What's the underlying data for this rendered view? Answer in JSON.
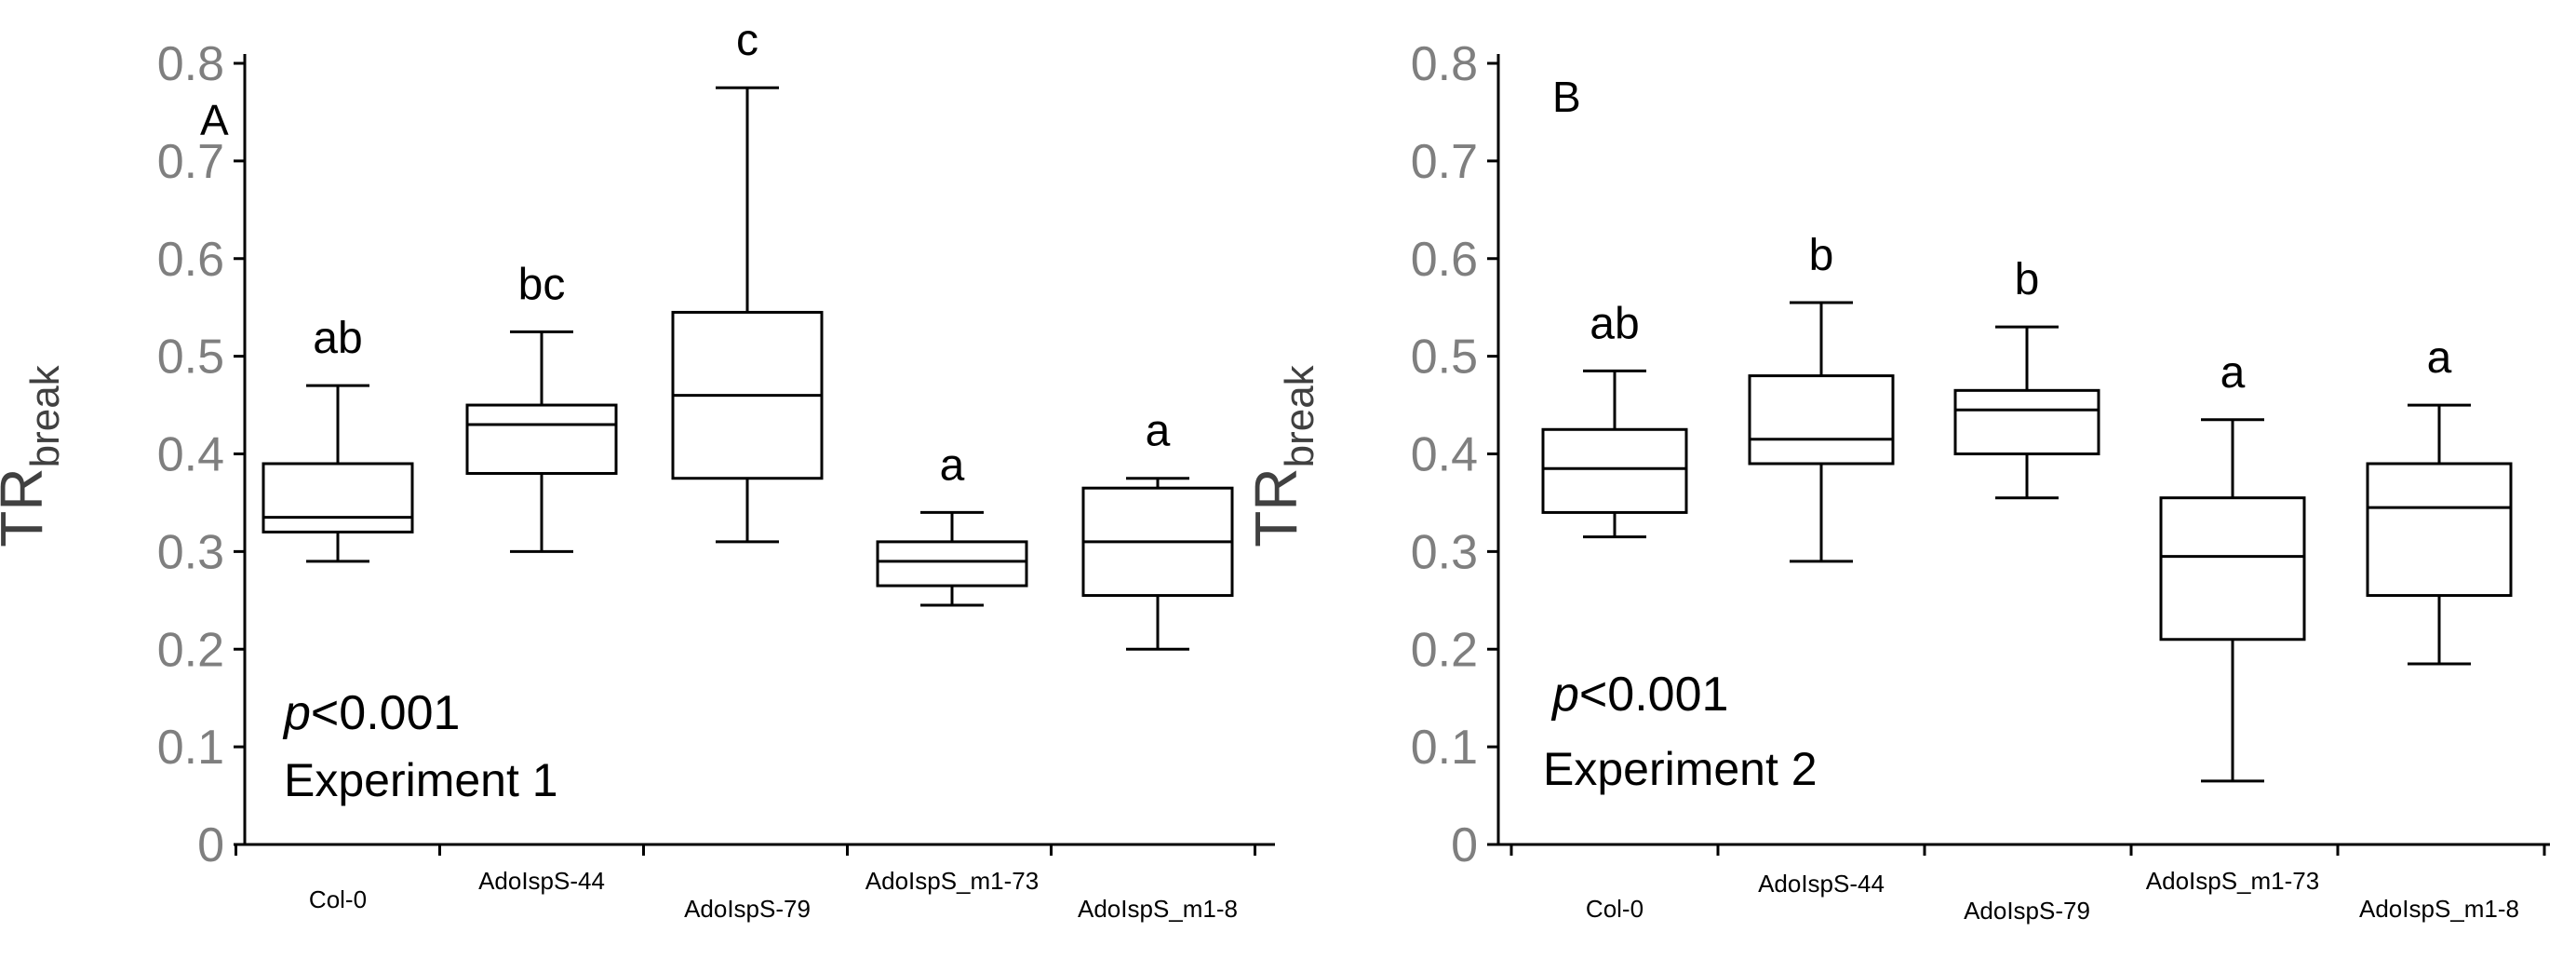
{
  "chart_data": [
    {
      "type": "box",
      "panel_label": "A",
      "ylabel": "TR",
      "ylabel_subscript": "break",
      "ylim": [
        0,
        0.8
      ],
      "yticks": [
        "0",
        "0.1",
        "0.2",
        "0.3",
        "0.4",
        "0.5",
        "0.6",
        "0.7",
        "0.8"
      ],
      "annotation_p_prefix": "p",
      "annotation_p_value": "<0.001",
      "annotation_experiment": "Experiment 1",
      "categories": [
        "Col-0",
        "AdoIspS-44",
        "AdoIspS-79",
        "AdoIspS_m1-73",
        "AdoIspS_m1-8"
      ],
      "boxes": [
        {
          "min": 0.29,
          "q1": 0.32,
          "median": 0.335,
          "q3": 0.39,
          "max": 0.47,
          "letter": "ab"
        },
        {
          "min": 0.3,
          "q1": 0.38,
          "median": 0.43,
          "q3": 0.45,
          "max": 0.525,
          "letter": "bc"
        },
        {
          "min": 0.31,
          "q1": 0.375,
          "median": 0.46,
          "q3": 0.545,
          "max": 0.775,
          "letter": "c"
        },
        {
          "min": 0.245,
          "q1": 0.265,
          "median": 0.29,
          "q3": 0.31,
          "max": 0.34,
          "letter": "a"
        },
        {
          "min": 0.2,
          "q1": 0.255,
          "median": 0.31,
          "q3": 0.365,
          "max": 0.375,
          "letter": "a"
        }
      ]
    },
    {
      "type": "box",
      "panel_label": "B",
      "ylabel": "TR",
      "ylabel_subscript": "break",
      "ylim": [
        0,
        0.8
      ],
      "yticks": [
        "0",
        "0.1",
        "0.2",
        "0.3",
        "0.4",
        "0.5",
        "0.6",
        "0.7",
        "0.8"
      ],
      "annotation_p_prefix": "p",
      "annotation_p_value": "<0.001",
      "annotation_experiment": "Experiment 2",
      "categories": [
        "Col-0",
        "AdoIspS-44",
        "AdoIspS-79",
        "AdoIspS_m1-73",
        "AdoIspS_m1-8"
      ],
      "boxes": [
        {
          "min": 0.315,
          "q1": 0.34,
          "median": 0.385,
          "q3": 0.425,
          "max": 0.485,
          "letter": "ab"
        },
        {
          "min": 0.29,
          "q1": 0.39,
          "median": 0.415,
          "q3": 0.48,
          "max": 0.555,
          "letter": "b"
        },
        {
          "min": 0.355,
          "q1": 0.4,
          "median": 0.445,
          "q3": 0.465,
          "max": 0.53,
          "letter": "b"
        },
        {
          "min": 0.065,
          "q1": 0.21,
          "median": 0.295,
          "q3": 0.355,
          "max": 0.435,
          "letter": "a"
        },
        {
          "min": 0.185,
          "q1": 0.255,
          "median": 0.345,
          "q3": 0.39,
          "max": 0.45,
          "letter": "a"
        }
      ]
    }
  ]
}
